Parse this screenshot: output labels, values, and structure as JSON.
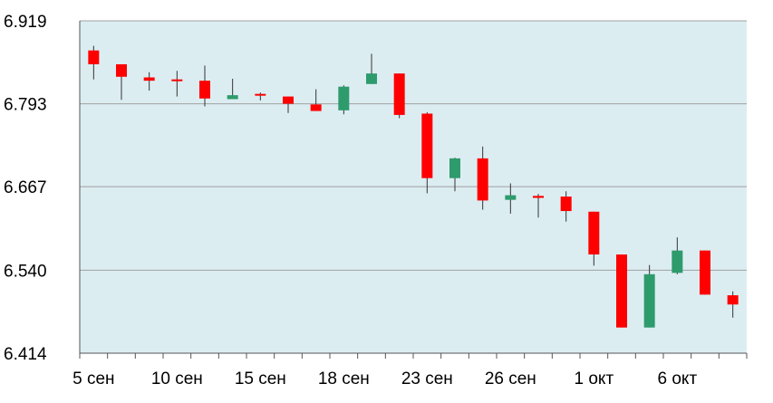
{
  "colors": {
    "plot_background": "#dcedf2",
    "up": "#2e9b6c",
    "down": "#ff0000",
    "grid": "#a0a0a0",
    "axis": "#555555",
    "wick": "#333333"
  },
  "chart_data": {
    "type": "candlestick",
    "title": "",
    "xlabel": "",
    "ylabel": "",
    "ylim": [
      6.414,
      6.919
    ],
    "y_ticks": [
      "6.919",
      "6.793",
      "6.667",
      "6.540",
      "6.414"
    ],
    "x_ticks": [
      "5 сен",
      "10 сен",
      "15 сен",
      "18 сен",
      "23 сен",
      "26 сен",
      "1 окт",
      "6 окт"
    ],
    "x_tick_positions": [
      0.5,
      3.5,
      6.5,
      9.5,
      12.5,
      15.5,
      18.5,
      21.5
    ],
    "grid": "horizontal",
    "candles": [
      {
        "open": 6.874,
        "close": 6.853,
        "high": 6.881,
        "low": 6.83
      },
      {
        "open": 6.853,
        "close": 6.834,
        "high": 6.853,
        "low": 6.799
      },
      {
        "open": 6.833,
        "close": 6.828,
        "high": 6.841,
        "low": 6.813
      },
      {
        "open": 6.83,
        "close": 6.829,
        "high": 6.843,
        "low": 6.804
      },
      {
        "open": 6.828,
        "close": 6.801,
        "high": 6.851,
        "low": 6.789
      },
      {
        "open": 6.8,
        "close": 6.806,
        "high": 6.831,
        "low": 6.8
      },
      {
        "open": 6.808,
        "close": 6.806,
        "high": 6.81,
        "low": 6.798
      },
      {
        "open": 6.804,
        "close": 6.793,
        "high": 6.804,
        "low": 6.779
      },
      {
        "open": 6.792,
        "close": 6.782,
        "high": 6.815,
        "low": 6.782
      },
      {
        "open": 6.783,
        "close": 6.819,
        "high": 6.821,
        "low": 6.777
      },
      {
        "open": 6.823,
        "close": 6.839,
        "high": 6.869,
        "low": 6.823
      },
      {
        "open": 6.839,
        "close": 6.776,
        "high": 6.839,
        "low": 6.771
      },
      {
        "open": 6.778,
        "close": 6.68,
        "high": 6.78,
        "low": 6.657
      },
      {
        "open": 6.68,
        "close": 6.71,
        "high": 6.711,
        "low": 6.66
      },
      {
        "open": 6.71,
        "close": 6.646,
        "high": 6.728,
        "low": 6.632
      },
      {
        "open": 6.647,
        "close": 6.654,
        "high": 6.672,
        "low": 6.626
      },
      {
        "open": 6.653,
        "close": 6.65,
        "high": 6.656,
        "low": 6.62
      },
      {
        "open": 6.652,
        "close": 6.63,
        "high": 6.66,
        "low": 6.614
      },
      {
        "open": 6.629,
        "close": 6.564,
        "high": 6.629,
        "low": 6.547
      },
      {
        "open": 6.564,
        "close": 6.453,
        "high": 6.564,
        "low": 6.453
      },
      {
        "open": 6.453,
        "close": 6.534,
        "high": 6.548,
        "low": 6.453
      },
      {
        "open": 6.536,
        "close": 6.57,
        "high": 6.59,
        "low": 6.534
      },
      {
        "open": 6.57,
        "close": 6.503,
        "high": 6.57,
        "low": 6.503
      },
      {
        "open": 6.502,
        "close": 6.488,
        "high": 6.508,
        "low": 6.468
      }
    ]
  }
}
